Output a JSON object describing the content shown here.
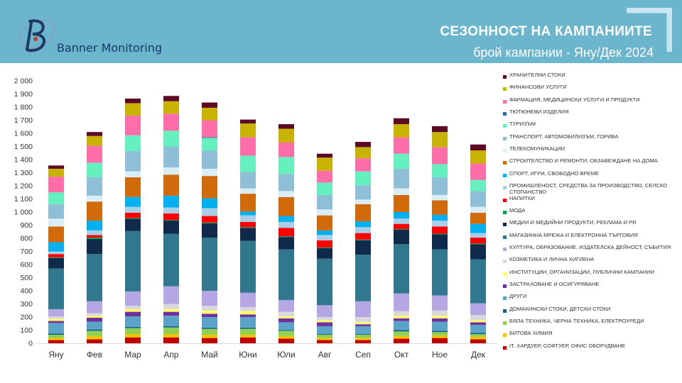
{
  "header": {
    "brand": "Banner Monitoring",
    "title": "СЕЗОННОСТ НА КАМПАНИИТЕ",
    "subtitle": "брой кампании - Яну/Дек 2024"
  },
  "chart_data": {
    "type": "stacked-bar",
    "title": "СЕЗОННОСТ НА КАМПАНИИТЕ",
    "subtitle": "брой кампании - Яну/Дек 2024",
    "categories": [
      "Яну",
      "Фев",
      "Мар",
      "Апр",
      "Май",
      "Юни",
      "Юли",
      "Авг",
      "Сеп",
      "Окт",
      "Ное",
      "Дек"
    ],
    "ylim": [
      0,
      2000
    ],
    "yticks": [
      "0",
      "100",
      "200",
      "300",
      "400",
      "500",
      "600",
      "700",
      "800",
      "900",
      "1 000",
      "1 100",
      "1 200",
      "1 300",
      "1 400",
      "1 500",
      "1 600",
      "1 700",
      "1 800",
      "1 900",
      "2 000"
    ],
    "legend_position": "right",
    "series": [
      {
        "name": "IT, ХАРДУЕР, СОФТУЕР, ОФИС ОБОРУДВАНЕ",
        "color": "#c00000",
        "values": [
          25,
          30,
          45,
          45,
          40,
          45,
          35,
          25,
          25,
          35,
          40,
          30
        ]
      },
      {
        "name": "БИТОВА ХИМИЯ",
        "color": "#f5c400",
        "values": [
          15,
          25,
          25,
          25,
          25,
          20,
          20,
          15,
          15,
          20,
          20,
          20
        ]
      },
      {
        "name": "БЯЛА ТЕХНИКА, ЧЕРНА ТЕХНИКА, ЕЛЕКТРОУРЕДИ",
        "color": "#92d050",
        "values": [
          25,
          40,
          45,
          50,
          45,
          45,
          40,
          25,
          25,
          35,
          25,
          20
        ]
      },
      {
        "name": "ДОМАКИНСКИ СТОКИ, ДЕТСКИ СТОКИ",
        "color": "#17608a",
        "values": [
          10,
          10,
          10,
          10,
          10,
          10,
          5,
          5,
          5,
          10,
          10,
          10
        ]
      },
      {
        "name": "ДРУГИ",
        "color": "#5ba3c8",
        "values": [
          80,
          60,
          80,
          80,
          80,
          80,
          60,
          60,
          60,
          70,
          70,
          60
        ]
      },
      {
        "name": "ЗАСТРАХОВАНЕ И ОСИГУРЯВАНЕ",
        "color": "#7030a0",
        "values": [
          15,
          30,
          35,
          30,
          25,
          20,
          30,
          30,
          15,
          20,
          25,
          20
        ]
      },
      {
        "name": "ИНСТИТУЦИИ, ОРГАНИЗАЦИИ, ПУБЛИЧНИ КАМПАНИИ",
        "color": "#ffff66",
        "values": [
          15,
          15,
          20,
          20,
          25,
          25,
          15,
          15,
          15,
          20,
          20,
          15
        ]
      },
      {
        "name": "КОЗМЕТИКА И ЛИЧНА ХИГИЕНА",
        "color": "#d9d9d9",
        "values": [
          20,
          20,
          25,
          40,
          35,
          30,
          35,
          25,
          40,
          35,
          40,
          40
        ]
      },
      {
        "name": "КУЛТУРА, ОБРАЗОВАНИЕ, ИЗДАТЕЛСКА ДЕЙНОСТ, СЪБИТИЯ",
        "color": "#b4a7e4",
        "values": [
          55,
          90,
          110,
          135,
          115,
          110,
          90,
          90,
          120,
          135,
          115,
          90
        ]
      },
      {
        "name": "МАГАЗИННА МРЕЖА И ЕЛЕКТРОННА ТЪРГОВИЯ",
        "color": "#31788e",
        "values": [
          310,
          360,
          460,
          400,
          405,
          395,
          385,
          355,
          355,
          375,
          350,
          335
        ]
      },
      {
        "name": "МЕДИИ И МЕДИЙНИ ПРОДУКТИ, РЕКЛАМА И PR",
        "color": "#0f2a4a",
        "values": [
          80,
          115,
          95,
          100,
          110,
          100,
          95,
          80,
          110,
          110,
          115,
          115
        ]
      },
      {
        "name": "МОДА",
        "color": "#00a050",
        "values": [
          5,
          10,
          5,
          5,
          5,
          5,
          5,
          5,
          5,
          5,
          5,
          5
        ]
      },
      {
        "name": "НАПИТКИ",
        "color": "#ff0000",
        "values": [
          25,
          20,
          40,
          50,
          50,
          40,
          65,
          55,
          50,
          40,
          55,
          45
        ]
      },
      {
        "name": "ПРОМИШЛЕНОСТ, СРЕДСТВА ЗА ПРОИЗВОДСТВО, СЕЛСКО СТОПАНСТВО",
        "color": "#a9cfe8",
        "values": [
          20,
          35,
          45,
          45,
          60,
          50,
          45,
          40,
          45,
          40,
          45,
          35
        ]
      },
      {
        "name": "СПОРТ, ИГРИ, СВОБОДНО ВРЕМЕ",
        "color": "#00b0f0",
        "values": [
          70,
          75,
          75,
          90,
          75,
          30,
          45,
          35,
          45,
          50,
          45,
          70
        ]
      },
      {
        "name": "СТРОИТЕЛСТВО И РЕМОНТИ, ОБЗАВЕЖДАНЕ НА ДОМА",
        "color": "#d16a0a",
        "values": [
          120,
          145,
          150,
          160,
          170,
          135,
          145,
          115,
          130,
          130,
          110,
          85
        ]
      },
      {
        "name": "ТЕЛЕКОМУНИКАЦИИ",
        "color": "#dbeef6",
        "values": [
          60,
          45,
          45,
          55,
          55,
          40,
          45,
          45,
          35,
          50,
          40,
          45
        ]
      },
      {
        "name": "ТРАНСПОРТ, АВТОМОБИЛИЗЪМ, ГОРИВА",
        "color": "#8fbfd6",
        "values": [
          110,
          140,
          155,
          160,
          140,
          125,
          130,
          110,
          110,
          150,
          135,
          120
        ]
      },
      {
        "name": "ТУРИЗЪМ",
        "color": "#66f0c0",
        "values": [
          90,
          110,
          120,
          120,
          95,
          125,
          130,
          95,
          105,
          115,
          100,
          85
        ]
      },
      {
        "name": "ТЮТЮНЕВИ ИЗДЕЛИЯ",
        "color": "#2e6ea8",
        "values": [
          0,
          0,
          0,
          0,
          5,
          0,
          0,
          0,
          0,
          0,
          0,
          0
        ]
      },
      {
        "name": "ФАРМАЦИЯ, МЕДИЦИНСКИ УСЛУГИ И ПРОДУКТИ",
        "color": "#ff6ea8",
        "values": [
          120,
          130,
          150,
          130,
          130,
          140,
          110,
          90,
          100,
          125,
          130,
          125
        ]
      },
      {
        "name": "ФИНАНСОВИ УСЛУГИ",
        "color": "#c8b400",
        "values": [
          60,
          75,
          95,
          95,
          95,
          105,
          105,
          100,
          85,
          100,
          115,
          100
        ]
      },
      {
        "name": "ХРАНИТЕЛНИ СТОКИ",
        "color": "#5c0a25",
        "values": [
          25,
          30,
          35,
          40,
          40,
          30,
          35,
          30,
          40,
          45,
          45,
          45
        ]
      }
    ]
  }
}
